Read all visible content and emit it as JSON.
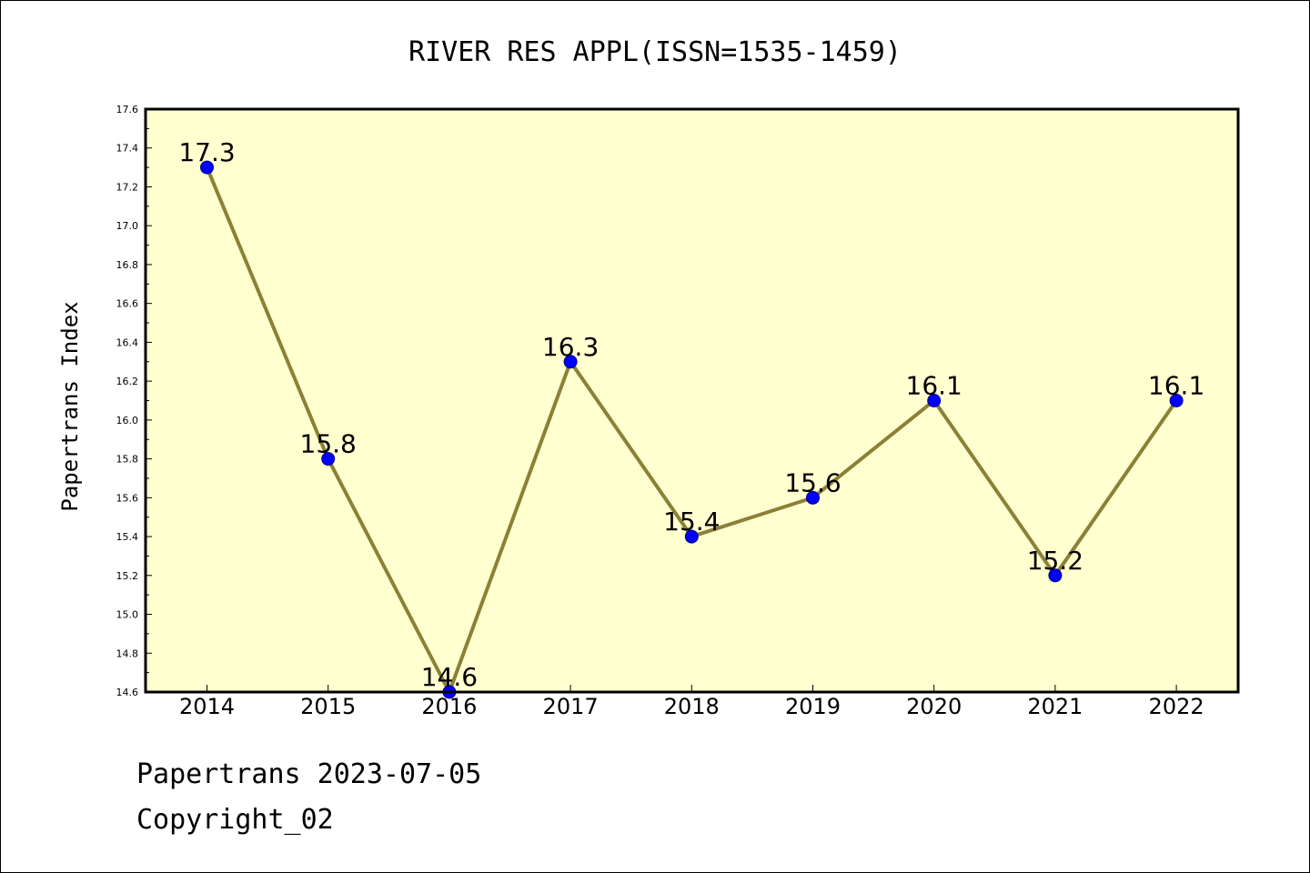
{
  "chart_data": {
    "type": "line",
    "title": "RIVER RES APPL(ISSN=1535-1459)",
    "xlabel": "",
    "ylabel": "Papertrans Index",
    "categories": [
      "2014",
      "2015",
      "2016",
      "2017",
      "2018",
      "2019",
      "2020",
      "2021",
      "2022"
    ],
    "series": [
      {
        "values": [
          17.3,
          15.8,
          14.6,
          16.3,
          15.4,
          15.6,
          16.1,
          15.2,
          16.1
        ],
        "data_labels": [
          "17.3",
          "15.8",
          "14.6",
          "16.3",
          "15.4",
          "15.6",
          "16.1",
          "15.2",
          "16.1"
        ]
      }
    ],
    "ylim": [
      14.6,
      17.6
    ],
    "y_major_ticks": [
      "14.6",
      "14.8",
      "15.0",
      "15.2",
      "15.4",
      "15.6",
      "15.8",
      "16.0",
      "16.2",
      "16.4",
      "16.6",
      "16.8",
      "17.0",
      "17.2",
      "17.4",
      "17.6"
    ],
    "grid": false,
    "legend": "none",
    "colors": {
      "plot_background": "#ffffd0",
      "line": "#8b8036",
      "marker": "#0000ff",
      "marker_edge": "#000080"
    }
  },
  "footer": {
    "date_line": "Papertrans 2023-07-05",
    "copyright": "Copyright_02"
  }
}
